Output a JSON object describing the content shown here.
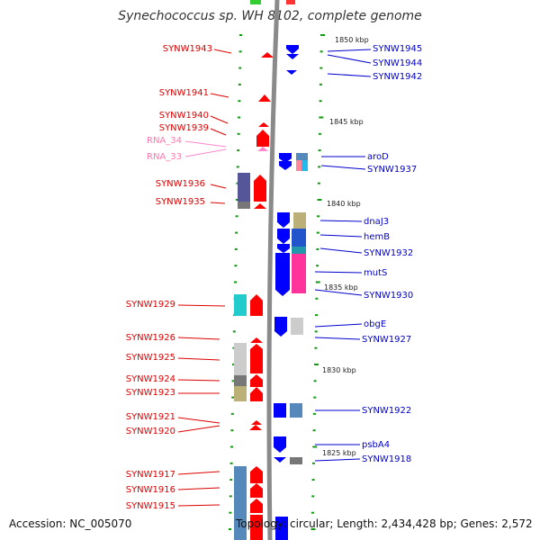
{
  "title": "Synechococcus sp. WH 8102, complete genome",
  "accession": "Accession: NC_005070",
  "topology": "Topology: circular; Length: 2,434,428 bp; Genes: 2,572",
  "colors": {
    "forward_label": "#dd0000",
    "reverse_label": "#0000cc",
    "rna_label": "#ff77aa",
    "forward_gene": "#ff0000",
    "reverse_gene": "#0000ff",
    "tick": "#119911",
    "axis": "#999999"
  },
  "scale": {
    "unit": "kbp",
    "ticks": [
      {
        "label": "1850 kbp",
        "value": 1850
      },
      {
        "label": "1845 kbp",
        "value": 1845
      },
      {
        "label": "1840 kbp",
        "value": 1840
      },
      {
        "label": "1835 kbp",
        "value": 1835
      },
      {
        "label": "1830 kbp",
        "value": 1830
      },
      {
        "label": "1825 kbp",
        "value": 1825
      }
    ]
  },
  "left_labels": [
    {
      "name": "SYNW1943",
      "type": "gene"
    },
    {
      "name": "SYNW1941",
      "type": "gene"
    },
    {
      "name": "SYNW1940",
      "type": "gene"
    },
    {
      "name": "SYNW1939",
      "type": "gene"
    },
    {
      "name": "RNA_34",
      "type": "rna"
    },
    {
      "name": "RNA_33",
      "type": "rna"
    },
    {
      "name": "SYNW1936",
      "type": "gene"
    },
    {
      "name": "SYNW1935",
      "type": "gene"
    },
    {
      "name": "SYNW1929",
      "type": "gene"
    },
    {
      "name": "SYNW1926",
      "type": "gene"
    },
    {
      "name": "SYNW1925",
      "type": "gene"
    },
    {
      "name": "SYNW1924",
      "type": "gene"
    },
    {
      "name": "SYNW1923",
      "type": "gene"
    },
    {
      "name": "SYNW1921",
      "type": "gene"
    },
    {
      "name": "SYNW1920",
      "type": "gene"
    },
    {
      "name": "SYNW1917",
      "type": "gene"
    },
    {
      "name": "SYNW1916",
      "type": "gene"
    },
    {
      "name": "SYNW1915",
      "type": "gene"
    }
  ],
  "right_labels": [
    {
      "name": "SYNW1945"
    },
    {
      "name": "SYNW1944"
    },
    {
      "name": "SYNW1942"
    },
    {
      "name": "aroD"
    },
    {
      "name": "SYNW1937"
    },
    {
      "name": "dnaJ3"
    },
    {
      "name": "hemB"
    },
    {
      "name": "SYNW1932"
    },
    {
      "name": "mutS"
    },
    {
      "name": "SYNW1930"
    },
    {
      "name": "obgE"
    },
    {
      "name": "SYNW1927"
    },
    {
      "name": "SYNW1922"
    },
    {
      "name": "psbA4"
    },
    {
      "name": "SYNW1918"
    }
  ]
}
